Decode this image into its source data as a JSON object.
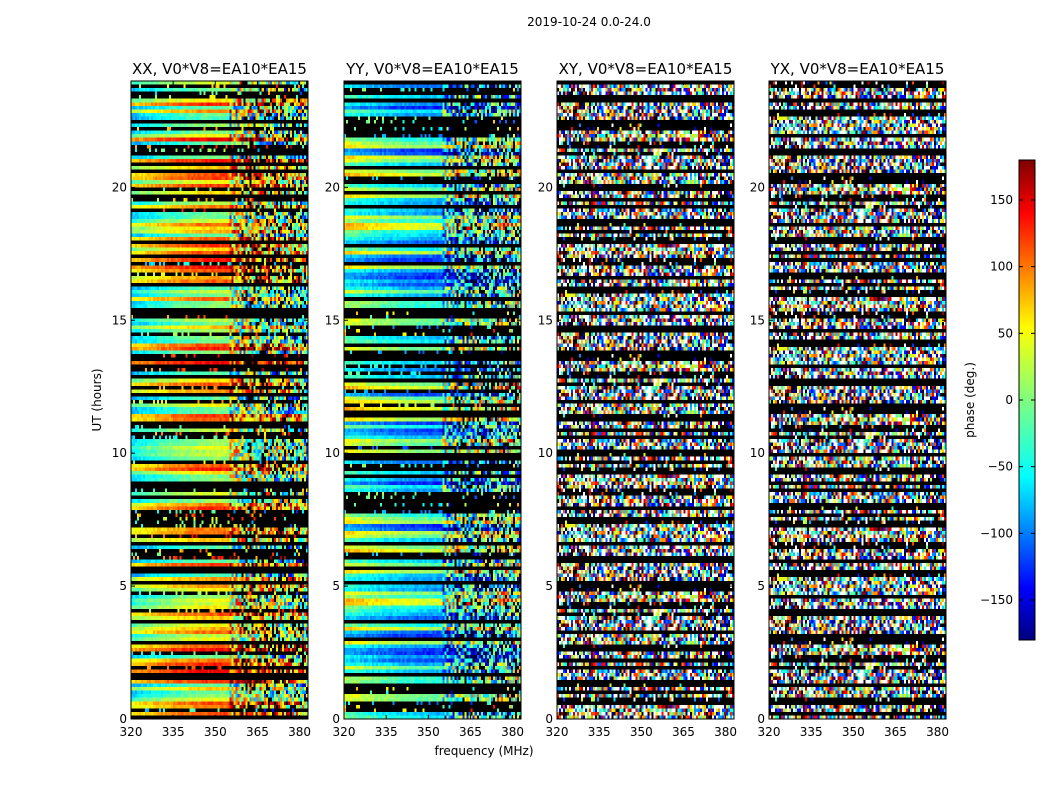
{
  "figure": {
    "suptitle": "2019-10-24 0.0-24.0"
  },
  "chart_data": {
    "type": "heatmap",
    "suptitle": "2019-10-24 0.0-24.0",
    "xlabel": "frequency (MHz)",
    "ylabel": "UT (hours)",
    "xlim": [
      320,
      383
    ],
    "ylim": [
      0,
      24
    ],
    "xticks": [
      320,
      335,
      350,
      365,
      380
    ],
    "yticks": [
      0,
      5,
      10,
      15,
      20
    ],
    "colorbar": {
      "label": "phase (deg.)",
      "range": [
        -180,
        180
      ],
      "ticks": [
        150,
        100,
        50,
        0,
        -50,
        -100,
        -150
      ],
      "colormap": "jet",
      "colors": [
        "#00007f",
        "#0000ff",
        "#007fff",
        "#00ffff",
        "#7fff7f",
        "#ffff00",
        "#ff7f00",
        "#ff0000",
        "#7f0000"
      ]
    },
    "panels": [
      {
        "title": "XX, V0*V8=EA10*EA15",
        "pattern": "coherent-phase-gradient"
      },
      {
        "title": "YY, V0*V8=EA10*EA15",
        "pattern": "coherent-phase-gradient"
      },
      {
        "title": "XY, V0*V8=EA10*EA15",
        "pattern": "noise"
      },
      {
        "title": "YX, V0*V8=EA10*EA15",
        "pattern": "noise"
      }
    ],
    "flagged_color": "#000000"
  }
}
